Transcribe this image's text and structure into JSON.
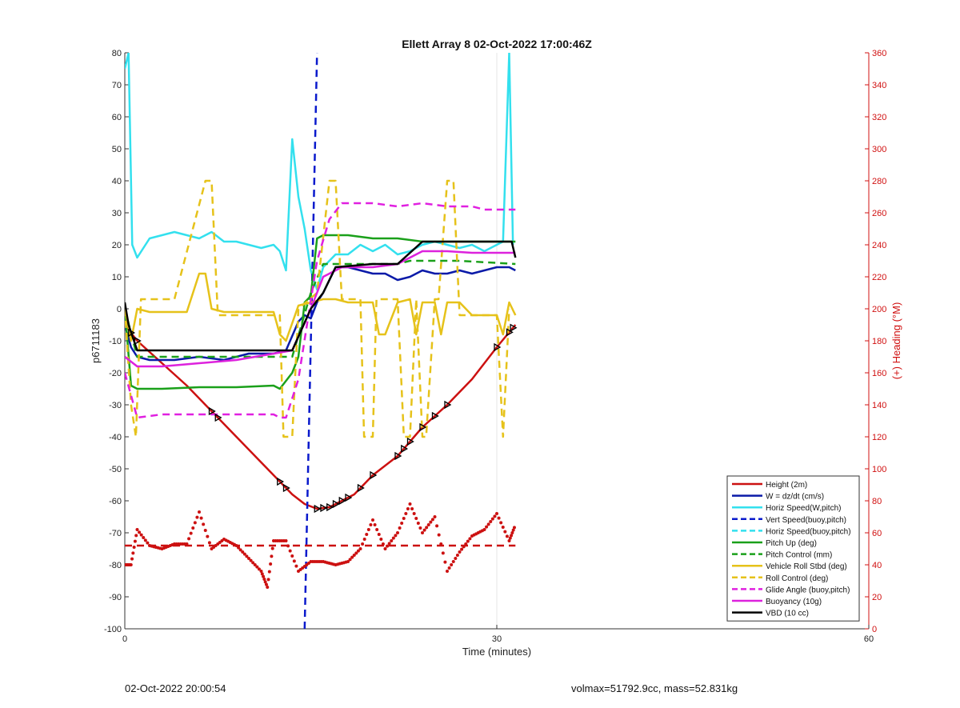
{
  "chart_data": {
    "type": "line",
    "title": "Ellett Array 8 02-Oct-2022 17:00:46Z",
    "xlabel": "Time (minutes)",
    "ylabel_left": "p6711183",
    "ylabel_right": "(+) Heading (°M)",
    "xlim": [
      0,
      60
    ],
    "ylim_left": [
      -100,
      80
    ],
    "ylim_right": [
      0,
      360
    ],
    "xticks": [
      0,
      30,
      60
    ],
    "yticks_left": [
      -100,
      -90,
      -80,
      -70,
      -60,
      -50,
      -40,
      -30,
      -20,
      -10,
      0,
      10,
      20,
      30,
      40,
      50,
      60,
      70,
      80
    ],
    "yticks_right": [
      0,
      20,
      40,
      60,
      80,
      100,
      120,
      140,
      160,
      180,
      200,
      220,
      240,
      260,
      280,
      300,
      320,
      340,
      360
    ],
    "grid": "x-only",
    "legend_position": "bottom-right",
    "colors": {
      "right_axis": "#d01010",
      "left_axis": "#222222"
    },
    "series": [
      {
        "name": "Height (2m)",
        "color": "#cc1111",
        "dash": "solid",
        "axis": "left",
        "x": [
          0,
          1,
          3,
          5,
          7,
          9,
          11,
          12.5,
          13.5,
          14.5,
          15.5,
          16.5,
          17.5,
          18.5,
          20,
          22,
          24,
          26,
          28,
          30,
          31.5
        ],
        "y": [
          -5,
          -10,
          -17,
          -24,
          -32,
          -40,
          -48,
          -54,
          -58,
          -61,
          -62.5,
          -62,
          -60,
          -58,
          -52,
          -46,
          -37,
          -30,
          -22,
          -12,
          -5
        ]
      },
      {
        "name": "W = dz/dt (cm/s)",
        "color": "#0a1aa8",
        "dash": "solid",
        "axis": "left",
        "x": [
          0,
          0.5,
          1,
          2,
          4,
          6,
          8,
          10,
          12,
          13,
          14,
          14.5,
          15,
          15.5,
          16,
          17,
          18,
          19,
          20,
          21,
          22,
          23,
          24,
          25,
          26,
          27,
          28,
          29,
          30,
          31,
          31.5
        ],
        "y": [
          -5,
          -12,
          -15,
          -16,
          -16,
          -15,
          -16,
          -14,
          -14,
          -13,
          -4,
          -2,
          -3,
          2,
          5,
          13,
          13,
          12,
          11,
          11,
          9,
          10,
          12,
          11,
          11,
          12,
          11,
          12,
          13,
          13,
          12
        ]
      },
      {
        "name": "Horiz Speed(W,pitch)",
        "color": "#33e0ee",
        "dash": "solid",
        "axis": "left",
        "x": [
          0,
          0.3,
          0.6,
          1,
          2,
          4,
          6,
          7,
          8,
          9,
          10,
          11,
          12,
          12.5,
          13,
          13.5,
          14,
          14.5,
          15,
          15.5,
          16,
          17,
          18,
          19,
          20,
          21,
          22,
          23,
          24,
          25,
          26,
          27,
          28,
          29,
          30,
          30.5,
          31,
          31.3
        ],
        "y": [
          75,
          80,
          20,
          16,
          22,
          24,
          22,
          24,
          21,
          21,
          20,
          19,
          20,
          18,
          12,
          53,
          35,
          25,
          12,
          6,
          13,
          17,
          17,
          20,
          18,
          20,
          17,
          18,
          20,
          21,
          20,
          19,
          20,
          18,
          20,
          21,
          80,
          20
        ]
      },
      {
        "name": "Vert Speed(buoy,pitch)",
        "color": "#0a1acc",
        "dash": "dashed",
        "axis": "left",
        "x": [
          14.5,
          15.5
        ],
        "y": [
          -100,
          80
        ]
      },
      {
        "name": "Horiz Speed(buoy,pitch)",
        "color": "#33e0ee",
        "dash": "dashed",
        "axis": "left",
        "x": [
          0,
          31.5
        ],
        "y": [
          0,
          0
        ],
        "hidden": true
      },
      {
        "name": "Pitch Up (deg)",
        "color": "#1aa01a",
        "dash": "solid",
        "axis": "left",
        "x": [
          0,
          0.5,
          1,
          3,
          6,
          9,
          12,
          12.5,
          13.5,
          14,
          14.5,
          15,
          15.5,
          16,
          18,
          20,
          22,
          24,
          26,
          28,
          30,
          31.5
        ],
        "y": [
          0,
          -24,
          -25,
          -25,
          -24.5,
          -24.5,
          -24,
          -25,
          -20,
          -15,
          2,
          4,
          22,
          23,
          23,
          22,
          22,
          21,
          21,
          21,
          21,
          21
        ]
      },
      {
        "name": "Pitch Control (mm)",
        "color": "#1aa01a",
        "dash": "dashed",
        "axis": "left",
        "x": [
          0,
          1,
          5,
          10,
          13.5,
          15,
          16,
          18,
          22,
          23,
          24,
          27,
          31.5
        ],
        "y": [
          0,
          -15,
          -15,
          -15,
          -15,
          5,
          14,
          14,
          14,
          15,
          15,
          15,
          14
        ]
      },
      {
        "name": "Vehicle Roll Stbd (deg)",
        "color": "#e6c21a",
        "dash": "solid",
        "axis": "left",
        "x": [
          0,
          0.5,
          1,
          2,
          5,
          6,
          6.5,
          7,
          8,
          10,
          12,
          12.5,
          13,
          14,
          15,
          16,
          17,
          18,
          19,
          20,
          20.5,
          21,
          22,
          23,
          23.5,
          24,
          25,
          25.5,
          26,
          27,
          28,
          29,
          30,
          30.5,
          31,
          31.5
        ],
        "y": [
          0,
          -10,
          0,
          -1,
          -1,
          11,
          11,
          0,
          -1,
          -1,
          -1,
          -8,
          -10,
          1,
          2,
          3,
          3,
          2,
          2,
          2,
          -8,
          -8,
          2,
          3,
          -8,
          2,
          2,
          -8,
          2,
          2,
          -2,
          -2,
          -2,
          -8,
          2,
          -2
        ]
      },
      {
        "name": "Roll Control (deg)",
        "color": "#e6c21a",
        "dash": "dashed",
        "axis": "left",
        "x": [
          0,
          0.5,
          0.9,
          1.3,
          4,
          6.5,
          7,
          7.5,
          10,
          12.5,
          12.8,
          13.5,
          14,
          15.5,
          16.5,
          17,
          17.5,
          19,
          19.3,
          20,
          20.3,
          22,
          22.5,
          23,
          23.5,
          24,
          24.3,
          25,
          25.3,
          26,
          26.5,
          27,
          27.5,
          30,
          30.5,
          31
        ],
        "y": [
          0,
          -30,
          -40,
          3,
          3,
          40,
          40,
          -2,
          -2,
          -2,
          -40,
          -40,
          0,
          5,
          40,
          40,
          3,
          3,
          -40,
          -40,
          3,
          3,
          -40,
          -40,
          3,
          -40,
          -40,
          3,
          3,
          40,
          40,
          -2,
          -2,
          -2,
          -40,
          0
        ]
      },
      {
        "name": "Glide Angle (buoy,pitch)",
        "color": "#e020e0",
        "dash": "dashed",
        "axis": "left",
        "x": [
          0,
          1,
          3,
          6,
          9,
          12,
          12.5,
          13,
          14,
          15.5,
          16.5,
          17.5,
          18,
          20,
          22,
          24,
          26,
          28,
          29,
          30,
          31.5
        ],
        "y": [
          -20,
          -34,
          -33,
          -33,
          -33,
          -33,
          -34,
          -34,
          -22,
          15,
          28,
          33,
          33,
          33,
          32,
          33,
          32,
          32,
          31,
          31,
          31
        ]
      },
      {
        "name": "Buoyancy (10g)",
        "color": "#dd22dd",
        "dash": "solid",
        "axis": "left",
        "x": [
          0,
          1,
          3,
          6,
          9,
          12,
          13.5,
          15,
          16,
          17.5,
          20,
          22,
          24,
          26,
          28,
          30,
          31.5
        ],
        "y": [
          -15,
          -18,
          -18,
          -17,
          -16,
          -14,
          -13,
          0,
          10,
          13,
          13,
          14,
          18,
          18,
          17.5,
          17.5,
          17.5
        ]
      },
      {
        "name": "VBD (10 cc)",
        "color": "#000000",
        "dash": "solid",
        "axis": "left",
        "x": [
          0,
          0.3,
          1,
          5,
          10,
          13,
          13.5,
          15,
          16,
          17,
          20,
          22,
          24,
          26,
          28,
          30,
          31.2,
          31.5
        ],
        "y": [
          2,
          -5,
          -13,
          -13,
          -13,
          -13,
          -13,
          0,
          5,
          13,
          14,
          14,
          21,
          21,
          21,
          21,
          21,
          16
        ]
      },
      {
        "name": "Heading",
        "color": "#cc1111",
        "dash": "dotted",
        "axis": "right",
        "in_legend": false,
        "x": [
          0,
          0.5,
          1,
          2,
          3,
          4,
          5,
          6,
          7,
          8,
          9,
          10,
          11,
          11.5,
          12,
          13,
          14,
          15,
          16,
          17,
          18,
          19,
          20,
          21,
          22,
          23,
          24,
          25,
          26,
          27,
          28,
          29,
          30,
          31,
          31.5
        ],
        "y": [
          40,
          40,
          62,
          52,
          50,
          53,
          53,
          73,
          50,
          56,
          52,
          44,
          36,
          26,
          55,
          55,
          36,
          42,
          42,
          40,
          42,
          50,
          68,
          50,
          60,
          78,
          60,
          70,
          36,
          48,
          58,
          62,
          72,
          55,
          65
        ]
      },
      {
        "name": "Mean Heading",
        "color": "#cc1111",
        "dash": "dashed",
        "axis": "right",
        "in_legend": false,
        "x": [
          0,
          31.5
        ],
        "y": [
          52,
          52
        ]
      }
    ]
  },
  "footer": {
    "left": "02-Oct-2022 20:00:54",
    "right": "volmax=51792.9cc, mass=52.831kg"
  }
}
